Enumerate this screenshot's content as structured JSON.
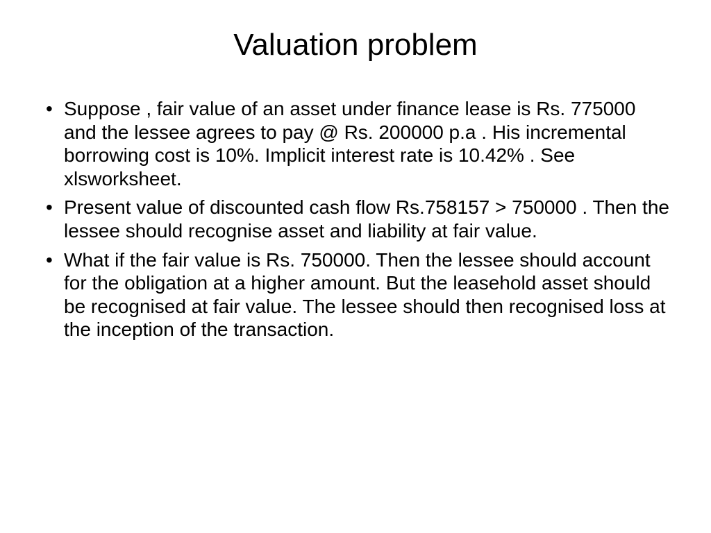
{
  "slide": {
    "title": "Valuation problem",
    "bullets": [
      "Suppose , fair value of an asset under finance lease is Rs. 775000 and the lessee agrees to pay @ Rs. 200000 p.a . His incremental borrowing cost is 10%. Implicit interest rate is 10.42% . See xlsworksheet.",
      "Present value of discounted cash flow Rs.758157 > 750000 . Then the lessee should recognise asset and liability at fair value.",
      "What if the fair value is Rs. 750000. Then the lessee should account for the obligation at a higher amount. But the leasehold asset should be recognised at fair value. The lessee should then recognised loss at the inception of the transaction."
    ],
    "styling": {
      "background_color": "#ffffff",
      "text_color": "#000000",
      "title_fontsize": 44,
      "body_fontsize": 28,
      "font_family": "Arial",
      "title_weight": "normal",
      "bullet_char": "•"
    }
  }
}
